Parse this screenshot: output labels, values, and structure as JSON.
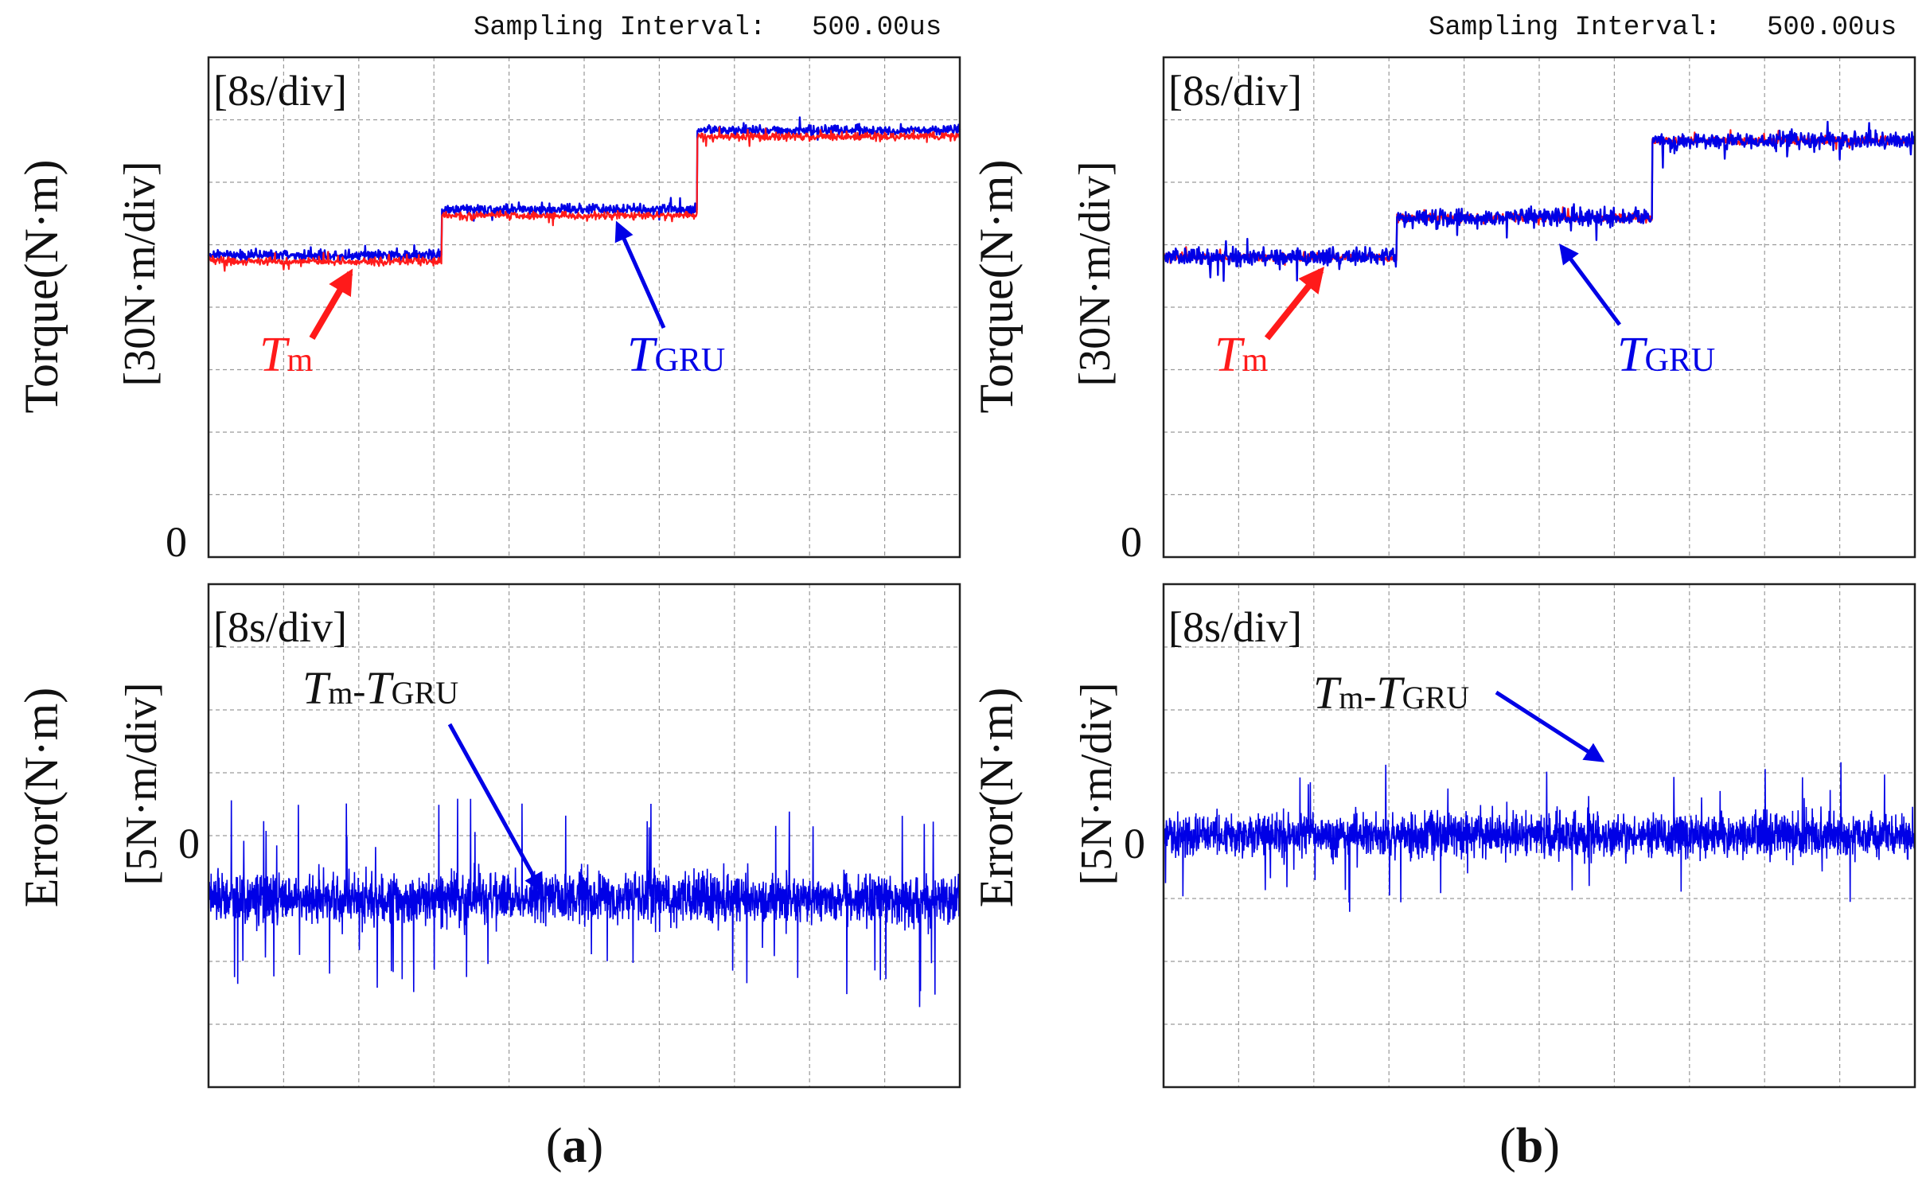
{
  "colors": {
    "measured": "#ff1a1a",
    "estimated": "#0000e6",
    "error": "#0000e6",
    "grid": "#9a9a9a",
    "frame": "#222222",
    "text": "#111111"
  },
  "header": {
    "sampling_label": "Sampling Interval:",
    "sampling_value": "500.00us"
  },
  "time_scale": "[8s/div]",
  "zero_label": "0",
  "torque_axis": {
    "title": "Torque(N·m)",
    "scale": "[30N·m/div]"
  },
  "error_axis": {
    "title": "Error(N·m)",
    "scale": "[5N·m/div]"
  },
  "labels": {
    "T": "T",
    "m": "m",
    "GRU": "GRU",
    "dash": "-"
  },
  "panels": [
    {
      "id": "a",
      "caption_open": "(",
      "caption_letter": "a",
      "caption_close": ")"
    },
    {
      "id": "b",
      "caption_open": "(",
      "caption_letter": "b",
      "caption_close": ")"
    }
  ],
  "chart_data": [
    {
      "panel": "a",
      "type": "line",
      "title": "Torque",
      "xlabel": "[8s/div]",
      "ylabel": "Torque(N·m) [30N·m/div]",
      "xlim": [
        0,
        80
      ],
      "ylim": [
        0,
        240
      ],
      "y_tick_labels": [
        "0"
      ],
      "grid": true,
      "series": [
        {
          "name": "Tm",
          "color": "#ff1a1a",
          "segments": [
            {
              "x0": 0,
              "x1": 31,
              "y": 142
            },
            {
              "x0": 31,
              "x1": 65,
              "y": 164
            },
            {
              "x0": 65,
              "x1": 100,
              "y": 202
            }
          ],
          "noise_amp": 3
        },
        {
          "name": "TGRU",
          "color": "#0000e6",
          "segments": [
            {
              "x0": 0,
              "x1": 31,
              "y": 145
            },
            {
              "x0": 31,
              "x1": 65,
              "y": 167
            },
            {
              "x0": 65,
              "x1": 100,
              "y": 205
            }
          ],
          "noise_amp": 4
        }
      ]
    },
    {
      "panel": "a",
      "type": "line",
      "title": "Error",
      "xlabel": "[8s/div]",
      "ylabel": "Error(N·m) [5N·m/div]",
      "xlim": [
        0,
        80
      ],
      "ylim": [
        -20,
        20
      ],
      "y_tick_labels": [
        "0"
      ],
      "grid": true,
      "series": [
        {
          "name": "Tm-TGRU",
          "color": "#0000e6",
          "mean": -5,
          "noise_amp": 3.5,
          "spike_amp": 7.5
        }
      ]
    },
    {
      "panel": "b",
      "type": "line",
      "title": "Torque",
      "xlabel": "[8s/div]",
      "ylabel": "Torque(N·m) [30N·m/div]",
      "xlim": [
        0,
        80
      ],
      "ylim": [
        0,
        240
      ],
      "y_tick_labels": [
        "0"
      ],
      "grid": true,
      "series": [
        {
          "name": "Tm",
          "color": "#ff1a1a",
          "segments": [
            {
              "x0": 0,
              "x1": 31,
              "y": 144
            },
            {
              "x0": 31,
              "x1": 65,
              "y": 163
            },
            {
              "x0": 65,
              "x1": 100,
              "y": 200
            }
          ],
          "noise_amp": 3
        },
        {
          "name": "TGRU",
          "color": "#0000e6",
          "segments": [
            {
              "x0": 0,
              "x1": 31,
              "y": 144
            },
            {
              "x0": 31,
              "x1": 65,
              "y": 163
            },
            {
              "x0": 65,
              "x1": 100,
              "y": 200
            }
          ],
          "noise_amp": 7
        }
      ]
    },
    {
      "panel": "b",
      "type": "line",
      "title": "Error",
      "xlabel": "[8s/div]",
      "ylabel": "Error(N·m) [5N·m/div]",
      "xlim": [
        0,
        80
      ],
      "ylim": [
        -20,
        20
      ],
      "y_tick_labels": [
        "0"
      ],
      "grid": true,
      "series": [
        {
          "name": "Tm-TGRU",
          "color": "#0000e6",
          "mean": 0,
          "noise_amp": 3,
          "spike_amp": 5
        }
      ]
    }
  ]
}
